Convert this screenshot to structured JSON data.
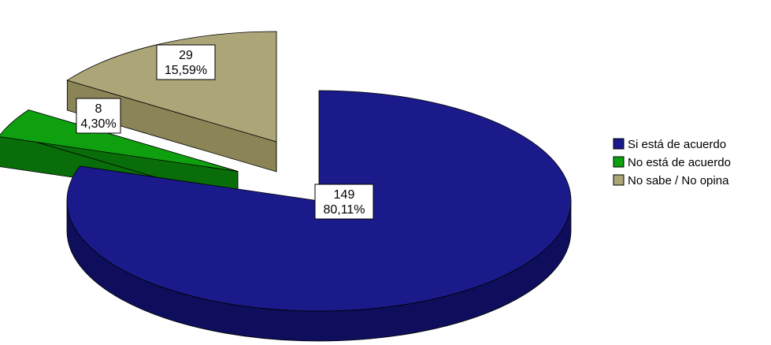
{
  "chart_data": {
    "type": "pie",
    "style": "3d-exploded",
    "slices": [
      {
        "label": "Si está de acuerdo",
        "count": "149",
        "percent": "80,11%",
        "value": 80.11,
        "color": "#1a1a8a",
        "side_color": "#0e0e5c",
        "exploded": false
      },
      {
        "label": "No está de acuerdo",
        "count": "8",
        "percent": "4,30%",
        "value": 4.3,
        "color": "#0fa00f",
        "side_color": "#096e09",
        "exploded": true
      },
      {
        "label": "No sabe / No opina",
        "count": "29",
        "percent": "15,59%",
        "value": 15.59,
        "color": "#aca577",
        "side_color": "#8a8456",
        "exploded": true
      }
    ],
    "legend": {
      "placement": "right",
      "items": [
        {
          "label": "Si está de acuerdo",
          "color": "#1a1a8a"
        },
        {
          "label": "No está de acuerdo",
          "color": "#0fa00f"
        },
        {
          "label": "No sabe / No opina",
          "color": "#aca577"
        }
      ]
    }
  }
}
